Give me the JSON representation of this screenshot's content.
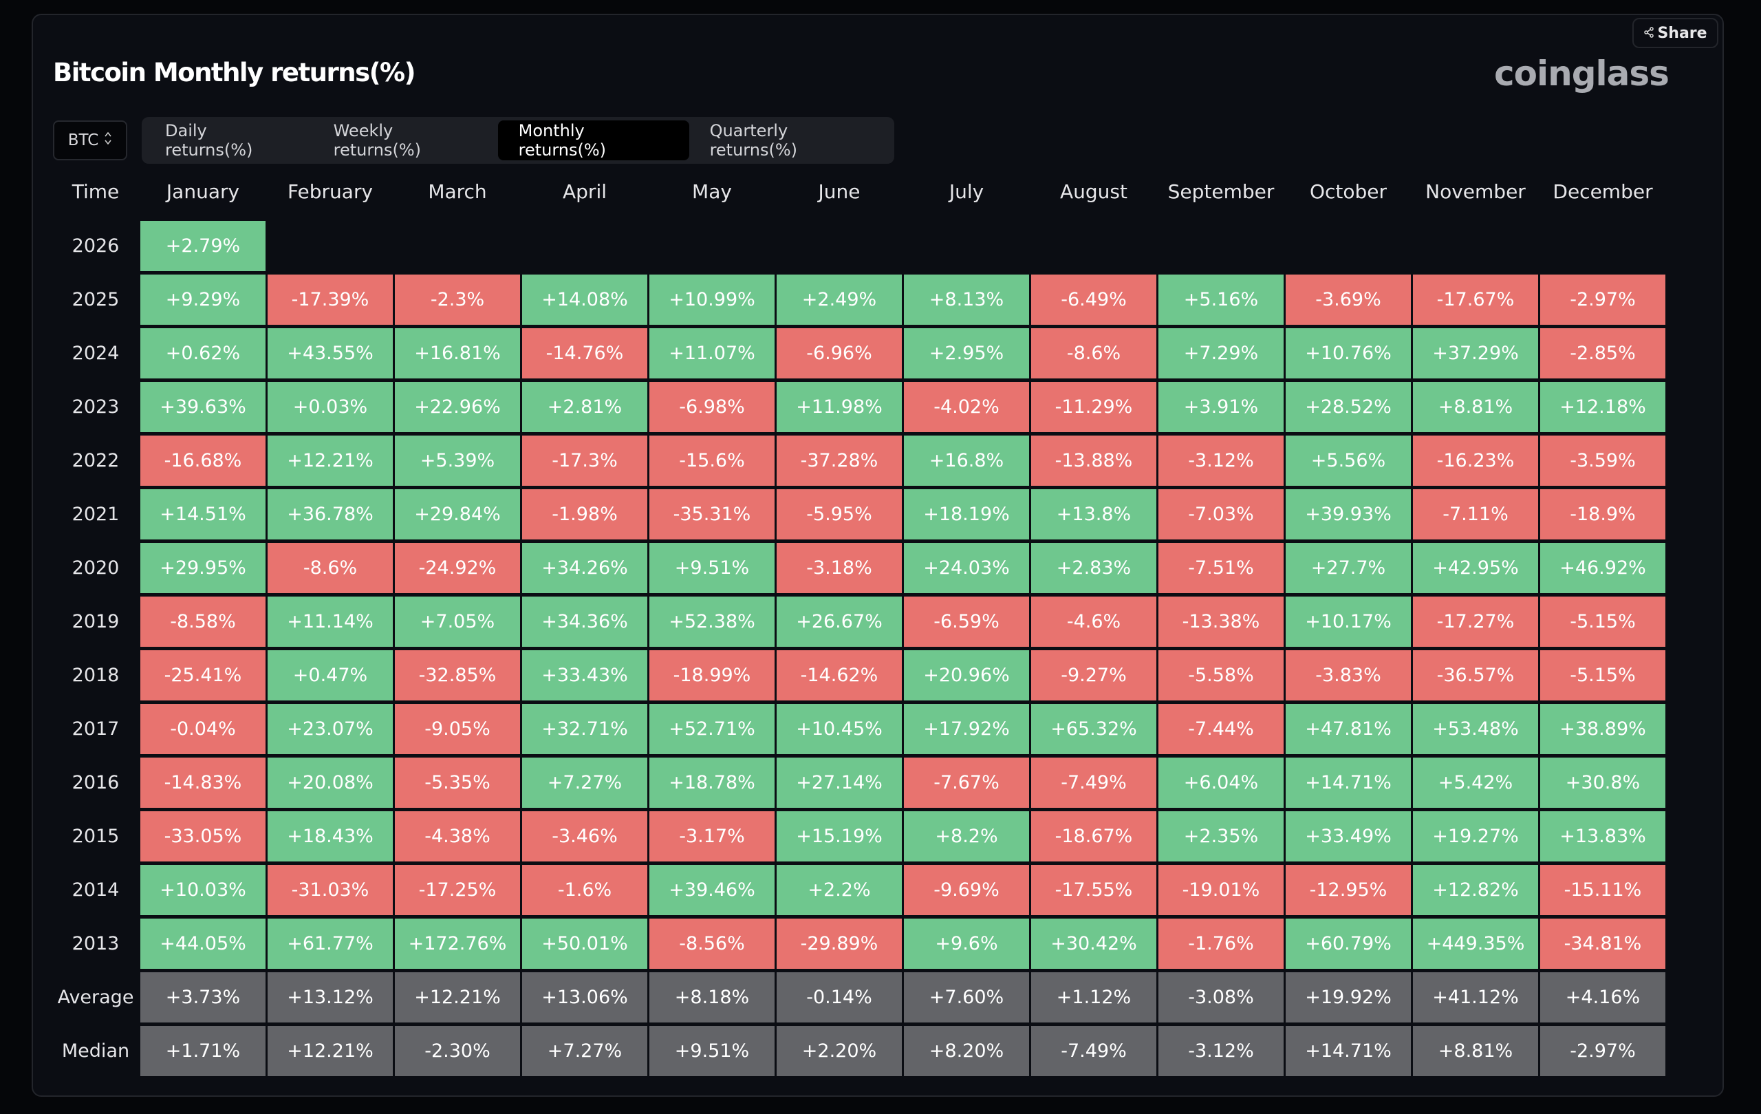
{
  "title": "Bitcoin Monthly returns(%)",
  "share_label": "Share",
  "logo": "coinglass",
  "asset_select": {
    "value": "BTC",
    "icon": "up-down-chevron-icon"
  },
  "tabs": [
    {
      "label": "Daily returns(%)",
      "active": false
    },
    {
      "label": "Weekly returns(%)",
      "active": false
    },
    {
      "label": "Monthly returns(%)",
      "active": true
    },
    {
      "label": "Quarterly returns(%)",
      "active": false
    }
  ],
  "colors": {
    "positive": "#6fc78e",
    "negative": "#e8736f",
    "summary": "#636468"
  },
  "table": {
    "headers": [
      "Time",
      "January",
      "February",
      "March",
      "April",
      "May",
      "June",
      "July",
      "August",
      "September",
      "October",
      "November",
      "December"
    ],
    "rows": [
      {
        "label": "2026",
        "values": [
          "+2.79%"
        ]
      },
      {
        "label": "2025",
        "values": [
          "+9.29%",
          "-17.39%",
          "-2.3%",
          "+14.08%",
          "+10.99%",
          "+2.49%",
          "+8.13%",
          "-6.49%",
          "+5.16%",
          "-3.69%",
          "-17.67%",
          "-2.97%"
        ]
      },
      {
        "label": "2024",
        "values": [
          "+0.62%",
          "+43.55%",
          "+16.81%",
          "-14.76%",
          "+11.07%",
          "-6.96%",
          "+2.95%",
          "-8.6%",
          "+7.29%",
          "+10.76%",
          "+37.29%",
          "-2.85%"
        ]
      },
      {
        "label": "2023",
        "values": [
          "+39.63%",
          "+0.03%",
          "+22.96%",
          "+2.81%",
          "-6.98%",
          "+11.98%",
          "-4.02%",
          "-11.29%",
          "+3.91%",
          "+28.52%",
          "+8.81%",
          "+12.18%"
        ]
      },
      {
        "label": "2022",
        "values": [
          "-16.68%",
          "+12.21%",
          "+5.39%",
          "-17.3%",
          "-15.6%",
          "-37.28%",
          "+16.8%",
          "-13.88%",
          "-3.12%",
          "+5.56%",
          "-16.23%",
          "-3.59%"
        ]
      },
      {
        "label": "2021",
        "values": [
          "+14.51%",
          "+36.78%",
          "+29.84%",
          "-1.98%",
          "-35.31%",
          "-5.95%",
          "+18.19%",
          "+13.8%",
          "-7.03%",
          "+39.93%",
          "-7.11%",
          "-18.9%"
        ]
      },
      {
        "label": "2020",
        "values": [
          "+29.95%",
          "-8.6%",
          "-24.92%",
          "+34.26%",
          "+9.51%",
          "-3.18%",
          "+24.03%",
          "+2.83%",
          "-7.51%",
          "+27.7%",
          "+42.95%",
          "+46.92%"
        ]
      },
      {
        "label": "2019",
        "values": [
          "-8.58%",
          "+11.14%",
          "+7.05%",
          "+34.36%",
          "+52.38%",
          "+26.67%",
          "-6.59%",
          "-4.6%",
          "-13.38%",
          "+10.17%",
          "-17.27%",
          "-5.15%"
        ]
      },
      {
        "label": "2018",
        "values": [
          "-25.41%",
          "+0.47%",
          "-32.85%",
          "+33.43%",
          "-18.99%",
          "-14.62%",
          "+20.96%",
          "-9.27%",
          "-5.58%",
          "-3.83%",
          "-36.57%",
          "-5.15%"
        ]
      },
      {
        "label": "2017",
        "values": [
          "-0.04%",
          "+23.07%",
          "-9.05%",
          "+32.71%",
          "+52.71%",
          "+10.45%",
          "+17.92%",
          "+65.32%",
          "-7.44%",
          "+47.81%",
          "+53.48%",
          "+38.89%"
        ]
      },
      {
        "label": "2016",
        "values": [
          "-14.83%",
          "+20.08%",
          "-5.35%",
          "+7.27%",
          "+18.78%",
          "+27.14%",
          "-7.67%",
          "-7.49%",
          "+6.04%",
          "+14.71%",
          "+5.42%",
          "+30.8%"
        ]
      },
      {
        "label": "2015",
        "values": [
          "-33.05%",
          "+18.43%",
          "-4.38%",
          "-3.46%",
          "-3.17%",
          "+15.19%",
          "+8.2%",
          "-18.67%",
          "+2.35%",
          "+33.49%",
          "+19.27%",
          "+13.83%"
        ]
      },
      {
        "label": "2014",
        "values": [
          "+10.03%",
          "-31.03%",
          "-17.25%",
          "-1.6%",
          "+39.46%",
          "+2.2%",
          "-9.69%",
          "-17.55%",
          "-19.01%",
          "-12.95%",
          "+12.82%",
          "-15.11%"
        ]
      },
      {
        "label": "2013",
        "values": [
          "+44.05%",
          "+61.77%",
          "+172.76%",
          "+50.01%",
          "-8.56%",
          "-29.89%",
          "+9.6%",
          "+30.42%",
          "-1.76%",
          "+60.79%",
          "+449.35%",
          "-34.81%"
        ]
      },
      {
        "label": "Average",
        "summary": true,
        "values": [
          "+3.73%",
          "+13.12%",
          "+12.21%",
          "+13.06%",
          "+8.18%",
          "-0.14%",
          "+7.60%",
          "+1.12%",
          "-3.08%",
          "+19.92%",
          "+41.12%",
          "+4.16%"
        ]
      },
      {
        "label": "Median",
        "summary": true,
        "values": [
          "+1.71%",
          "+12.21%",
          "-2.30%",
          "+7.27%",
          "+9.51%",
          "+2.20%",
          "+8.20%",
          "-7.49%",
          "-3.12%",
          "+14.71%",
          "+8.81%",
          "-2.97%"
        ]
      }
    ]
  }
}
